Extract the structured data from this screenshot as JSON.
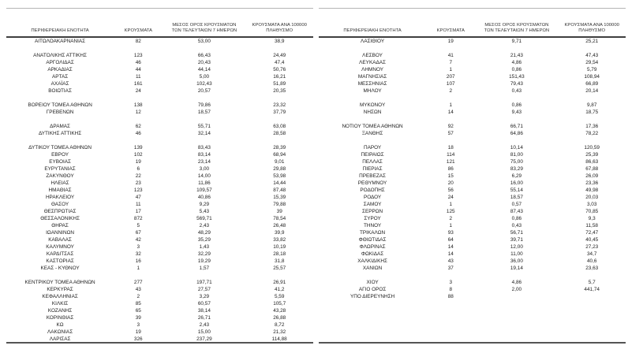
{
  "report": {
    "columns": [
      "ΠΕΡΙΦΕΡΕΙΑΚΗ ΕΝΟΤΗΤΑ",
      "ΚΡΟΥΣΜΑΤΑ",
      "ΜΕΣΟΣ ΟΡΟΣ ΚΡΟΥΣΜΑΤΩΝ ΤΩΝ ΤΕΛΕΥΤΑΙΩΝ 7 ΗΜΕΡΩΝ",
      "ΚΡΟΥΣΜΑΤΑ ΑΝΑ 100000 ΠΛΗΘΥΣΜΟ"
    ],
    "colors": {
      "text": "#1c1c1c",
      "header_text": "#333333",
      "top_rule": "#b5b5b5",
      "header_rule": "#3f3f3f",
      "bottom_rule": "#545454",
      "background": "#ffffff"
    },
    "tables": [
      {
        "id": "left",
        "rows": [
          [
            "ΑΙΤΩΛΟΑΚΑΡΝΑΝΙΑΣ",
            "82",
            "53,00",
            "38,9"
          ],
          null,
          [
            "ΑΝΑΤΟΛΙΚΗΣ ΑΤΤΙΚΗΣ",
            "123",
            "66,43",
            "24,49"
          ],
          [
            "ΑΡΓΟΛΙΔΑΣ",
            "46",
            "20,43",
            "47,4"
          ],
          [
            "ΑΡΚΑΔΙΑΣ",
            "44",
            "44,14",
            "50,76"
          ],
          [
            "ΑΡΤΑΣ",
            "11",
            "5,00",
            "16,21"
          ],
          [
            "ΑΧΑΪΑΣ",
            "161",
            "102,43",
            "51,89"
          ],
          [
            "ΒΟΙΩΤΙΑΣ",
            "24",
            "20,57",
            "20,35"
          ],
          null,
          [
            "ΒΟΡΕΙΟΥ ΤΟΜΕΑ ΑΘΗΝΩΝ",
            "138",
            "79,86",
            "23,32"
          ],
          [
            "ΓΡΕΒΕΝΩΝ",
            "12",
            "18,57",
            "37,79"
          ],
          null,
          [
            "ΔΡΑΜΑΣ",
            "62",
            "55,71",
            "63,08"
          ],
          [
            "ΔΥΤΙΚΗΣ ΑΤΤΙΚΗΣ",
            "46",
            "32,14",
            "28,58"
          ],
          null,
          [
            "ΔΥΤΙΚΟΥ ΤΟΜΕΑ ΑΘΗΝΩΝ",
            "139",
            "83,43",
            "28,39"
          ],
          [
            "ΕΒΡΟΥ",
            "102",
            "83,14",
            "68,94"
          ],
          [
            "ΕΥΒΟΙΑΣ",
            "19",
            "23,14",
            "9,01"
          ],
          [
            "ΕΥΡΥΤΑΝΙΑΣ",
            "6",
            "3,00",
            "29,88"
          ],
          [
            "ΖΑΚΥΝΘΟΥ",
            "22",
            "14,00",
            "53,98"
          ],
          [
            "ΗΛΕΙΑΣ",
            "23",
            "11,86",
            "14,44"
          ],
          [
            "ΗΜΑΘΙΑΣ",
            "123",
            "109,57",
            "87,48"
          ],
          [
            "ΗΡΑΚΛΕΙΟΥ",
            "47",
            "40,86",
            "15,39"
          ],
          [
            "ΘΑΣΟΥ",
            "11",
            "9,29",
            "79,88"
          ],
          [
            "ΘΕΣΠΡΩΤΙΑΣ",
            "17",
            "5,43",
            "39"
          ],
          [
            "ΘΕΣΣΑΛΟΝΙΚΗΣ",
            "872",
            "569,71",
            "78,54"
          ],
          [
            "ΘΗΡΑΣ",
            "5",
            "2,43",
            "26,48"
          ],
          [
            "ΙΩΑΝΝΙΝΩΝ",
            "67",
            "48,29",
            "39,9"
          ],
          [
            "ΚΑΒΑΛΑΣ",
            "42",
            "35,29",
            "33,82"
          ],
          [
            "ΚΑΛΥΜΝΟΥ",
            "3",
            "1,43",
            "10,19"
          ],
          [
            "ΚΑΡΔΙΤΣΑΣ",
            "32",
            "32,29",
            "28,18"
          ],
          [
            "ΚΑΣΤΟΡΙΑΣ",
            "16",
            "19,29",
            "31,8"
          ],
          [
            "ΚΕΑΣ - ΚΥΘΝΟΥ",
            "1",
            "1,57",
            "25,57"
          ],
          null,
          [
            "ΚΕΝΤΡΙΚΟΥ ΤΟΜΕΑ ΑΘΗΝΩΝ",
            "277",
            "197,71",
            "26,91"
          ],
          [
            "ΚΕΡΚΥΡΑΣ",
            "43",
            "27,57",
            "41,2"
          ],
          [
            "ΚΕΦΑΛΛΗΝΙΑΣ",
            "2",
            "3,29",
            "5,59"
          ],
          [
            "ΚΙΛΚΙΣ",
            "85",
            "60,57",
            "105,7"
          ],
          [
            "ΚΟΖΑΝΗΣ",
            "65",
            "38,14",
            "43,28"
          ],
          [
            "ΚΟΡΙΝΘΙΑΣ",
            "39",
            "26,71",
            "26,88"
          ],
          [
            "ΚΩ",
            "3",
            "2,43",
            "8,72"
          ],
          [
            "ΛΑΚΩΝΙΑΣ",
            "19",
            "15,00",
            "21,32"
          ],
          [
            "ΛΑΡΙΣΑΣ",
            "326",
            "237,29",
            "114,88"
          ]
        ]
      },
      {
        "id": "right",
        "rows": [
          [
            "ΛΑΣΙΘΙΟΥ",
            "19",
            "9,71",
            "25,21"
          ],
          null,
          [
            "ΛΕΣΒΟΥ",
            "41",
            "21,43",
            "47,43"
          ],
          [
            "ΛΕΥΚΑΔΑΣ",
            "7",
            "4,86",
            "29,54"
          ],
          [
            "ΛΗΜΝΟΥ",
            "1",
            "0,86",
            "5,79"
          ],
          [
            "ΜΑΓΝΗΣΙΑΣ",
            "207",
            "151,43",
            "108,94"
          ],
          [
            "ΜΕΣΣΗΝΙΑΣ",
            "107",
            "79,43",
            "66,89"
          ],
          [
            "ΜΗΛΟΥ",
            "2",
            "0,43",
            "20,14"
          ],
          null,
          [
            "ΜΥΚΟΝΟΥ",
            "1",
            "0,86",
            "9,87"
          ],
          [
            "ΝΗΣΩΝ",
            "14",
            "9,43",
            "18,75"
          ],
          null,
          [
            "ΝΟΤΙΟΥ ΤΟΜΕΑ ΑΘΗΝΩΝ",
            "92",
            "66,71",
            "17,36"
          ],
          [
            "ΞΑΝΘΗΣ",
            "57",
            "64,86",
            "78,22"
          ],
          null,
          [
            "ΠΑΡΟΥ",
            "18",
            "10,14",
            "120,59"
          ],
          [
            "ΠΕΙΡΑΙΩΣ",
            "114",
            "81,00",
            "25,39"
          ],
          [
            "ΠΕΛΛΑΣ",
            "121",
            "75,00",
            "86,63"
          ],
          [
            "ΠΙΕΡΙΑΣ",
            "86",
            "83,29",
            "67,88"
          ],
          [
            "ΠΡΕΒΕΖΑΣ",
            "15",
            "6,29",
            "26,09"
          ],
          [
            "ΡΕΘΥΜΝΟΥ",
            "20",
            "16,00",
            "23,36"
          ],
          [
            "ΡΟΔΟΠΗΣ",
            "56",
            "55,14",
            "49,98"
          ],
          [
            "ΡΟΔΟΥ",
            "24",
            "18,57",
            "20,03"
          ],
          [
            "ΣΑΜΟΥ",
            "1",
            "0,57",
            "3,03"
          ],
          [
            "ΣΕΡΡΩΝ",
            "125",
            "87,43",
            "70,85"
          ],
          [
            "ΣΥΡΟΥ",
            "2",
            "0,86",
            "9,3"
          ],
          [
            "ΤΗΝΟΥ",
            "1",
            "0,43",
            "11,58"
          ],
          [
            "ΤΡΙΚΑΛΩΝ",
            "93",
            "56,71",
            "72,47"
          ],
          [
            "ΦΘΙΩΤΙΔΑΣ",
            "64",
            "39,71",
            "40,45"
          ],
          [
            "ΦΛΩΡΙΝΑΣ",
            "14",
            "12,00",
            "27,23"
          ],
          [
            "ΦΩΚΙΔΑΣ",
            "14",
            "11,00",
            "34,7"
          ],
          [
            "ΧΑΛΚΙΔΙΚΗΣ",
            "43",
            "36,00",
            "40,6"
          ],
          [
            "ΧΑΝΙΩΝ",
            "37",
            "19,14",
            "23,63"
          ],
          null,
          [
            "ΧΙΟΥ",
            "3",
            "4,86",
            "5,7"
          ],
          [
            "ΑΓΙΟ ΟΡΟΣ",
            "8",
            "2,00",
            "441,74"
          ],
          [
            "ΥΠΟ ΔΙΕΡΕΥΝΗΣΗ",
            "88",
            "",
            ""
          ]
        ]
      }
    ]
  }
}
